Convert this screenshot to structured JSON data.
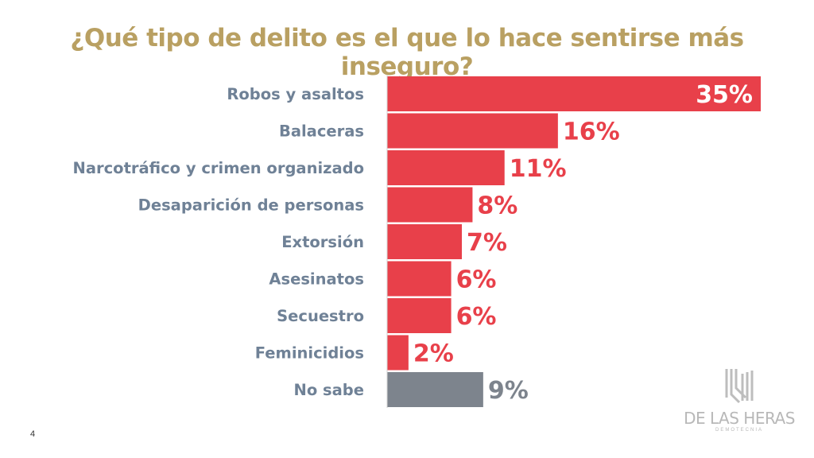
{
  "chart_data": {
    "type": "bar",
    "orientation": "horizontal",
    "title": "¿Qué tipo de delito es el que lo hace sentirse más inseguro?",
    "categories": [
      "Robos y asaltos",
      "Balaceras",
      "Narcotráfico y crimen organizado",
      "Desaparición de personas",
      "Extorsión",
      "Asesinatos",
      "Secuestro",
      "Feminicidios",
      "No sabe"
    ],
    "values": [
      35,
      16,
      11,
      8,
      7,
      6,
      6,
      2,
      9
    ],
    "labels": [
      "35%",
      "16%",
      "11%",
      "8%",
      "7%",
      "6%",
      "6%",
      "2%",
      "9%"
    ],
    "colors": [
      "#e8404a",
      "#e8404a",
      "#e8404a",
      "#e8404a",
      "#e8404a",
      "#e8404a",
      "#e8404a",
      "#e8404a",
      "#7d848d"
    ],
    "xlim": [
      0,
      35
    ],
    "grid": false
  },
  "page_number": "4",
  "logo": {
    "name": "DE LAS HERAS",
    "sub": "DEMOTECNIA"
  }
}
